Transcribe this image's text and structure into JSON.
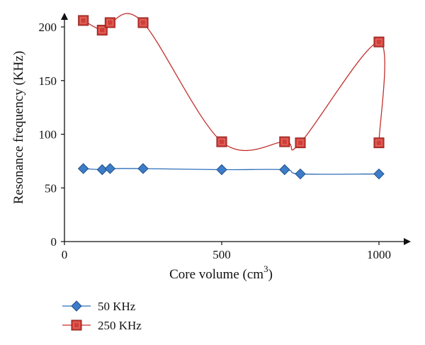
{
  "chart_data": {
    "type": "line",
    "xlabel": "Core volume (cm",
    "xlabel_sup": "3",
    "xlabel_end": ")",
    "ylabel": "Resonance frequency (KHz)",
    "xlim": [
      0,
      1040
    ],
    "ylim": [
      0,
      215
    ],
    "xticks": [
      0,
      500,
      1000
    ],
    "yticks": [
      0,
      50,
      100,
      150,
      200
    ],
    "grid": false,
    "smooth": true,
    "legend_position": "bottom-left",
    "series": [
      {
        "name": "50 KHz",
        "marker": "diamond",
        "color": "#2f6fb8",
        "fill": "#3d7cc9",
        "x": [
          60,
          120,
          145,
          250,
          500,
          700,
          750,
          1000
        ],
        "y": [
          68,
          67,
          68,
          68,
          67,
          67,
          63,
          63
        ]
      },
      {
        "name": "250 KHz",
        "marker": "square",
        "color": "#c0322d",
        "fill": "#cf3f38",
        "x": [
          60,
          120,
          145,
          250,
          500,
          700,
          750,
          1000,
          1000
        ],
        "y": [
          206,
          197,
          204,
          204,
          93,
          93,
          92,
          186,
          92
        ]
      }
    ]
  }
}
